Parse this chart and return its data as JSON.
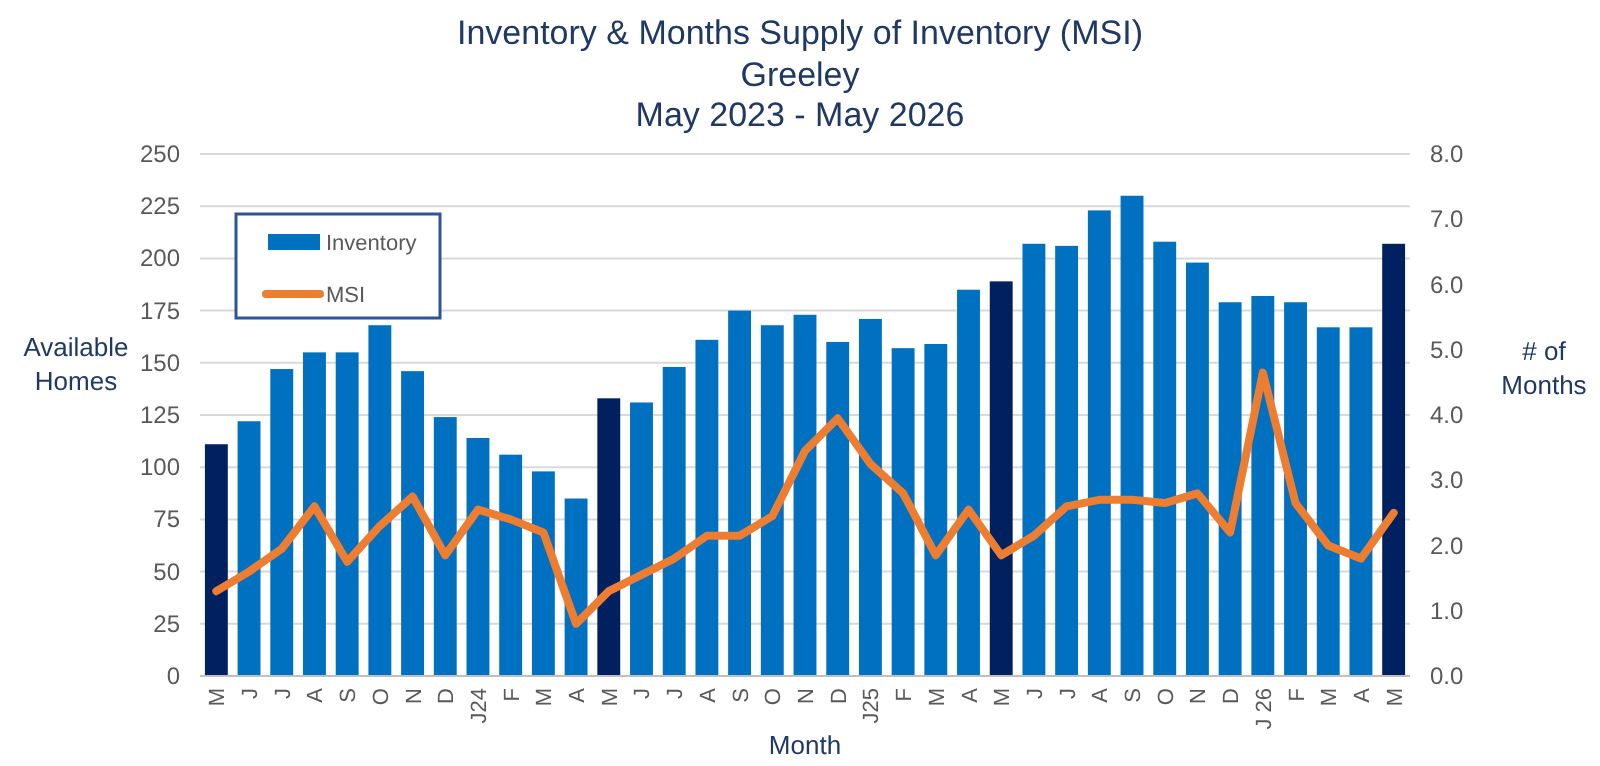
{
  "chart_data": {
    "type": "bar",
    "title": "Inventory & Months Supply of Inventory (MSI)",
    "subtitle": "Greeley\nMay 2023 - May 2026",
    "xlabel": "Month",
    "ylabel": "Available\nHomes",
    "y2label": "# of\nMonths",
    "categories": [
      "M",
      "J",
      "J",
      "A",
      "S",
      "O",
      "N",
      "D",
      "J24",
      "F",
      "M",
      "A",
      "M",
      "J",
      "J",
      "A",
      "S",
      "O",
      "N",
      "D",
      "J25",
      "F",
      "M",
      "A",
      "M",
      "J",
      "J",
      "A",
      "S",
      "O",
      "N",
      "D",
      "J 26",
      "F",
      "M",
      "A",
      "M"
    ],
    "series": [
      {
        "name": "Inventory",
        "color": "#0070c0",
        "colors": [
          "#002060",
          "#0070c0",
          "#0070c0",
          "#0070c0",
          "#0070c0",
          "#0070c0",
          "#0070c0",
          "#0070c0",
          "#0070c0",
          "#0070c0",
          "#0070c0",
          "#0070c0",
          "#002060",
          "#0070c0",
          "#0070c0",
          "#0070c0",
          "#0070c0",
          "#0070c0",
          "#0070c0",
          "#0070c0",
          "#0070c0",
          "#0070c0",
          "#0070c0",
          "#0070c0",
          "#002060",
          "#0070c0",
          "#0070c0",
          "#0070c0",
          "#0070c0",
          "#0070c0",
          "#0070c0",
          "#0070c0",
          "#0070c0",
          "#0070c0",
          "#0070c0",
          "#0070c0",
          "#002060"
        ],
        "values": [
          111,
          122,
          147,
          155,
          155,
          168,
          146,
          124,
          114,
          106,
          98,
          85,
          133,
          131,
          148,
          161,
          175,
          168,
          173,
          160,
          171,
          157,
          159,
          185,
          189,
          207,
          206,
          223,
          230,
          208,
          198,
          179,
          182,
          179,
          167,
          167,
          207
        ]
      },
      {
        "name": "MSI",
        "type": "line",
        "axis": "y2",
        "color": "#ed7d31",
        "values": [
          1.3,
          1.6,
          1.95,
          2.6,
          1.75,
          2.3,
          2.75,
          1.85,
          2.55,
          2.4,
          2.2,
          0.8,
          1.3,
          1.55,
          1.8,
          2.15,
          2.15,
          2.45,
          3.45,
          3.95,
          3.25,
          2.8,
          1.85,
          2.55,
          1.85,
          2.15,
          2.6,
          2.7,
          2.7,
          2.65,
          2.8,
          2.2,
          4.65,
          2.65,
          2.0,
          1.8,
          2.5
        ]
      }
    ],
    "ylim": [
      0,
      250
    ],
    "yticks": [
      0,
      25,
      50,
      75,
      100,
      125,
      150,
      175,
      200,
      225,
      250
    ],
    "y2lim": [
      0,
      8
    ],
    "y2ticks": [
      {
        "value": 0,
        "label": "0.0"
      },
      {
        "value": 1,
        "label": "1.0"
      },
      {
        "value": 2,
        "label": "2.0"
      },
      {
        "value": 3,
        "label": "3.0"
      },
      {
        "value": 4,
        "label": "4.0"
      },
      {
        "value": 5,
        "label": "5.0"
      },
      {
        "value": 6,
        "label": "6.0"
      },
      {
        "value": 7,
        "label": "7.0"
      },
      {
        "value": 8,
        "label": "8.0"
      }
    ],
    "grid": "y",
    "legend": "top left",
    "line_style": "solid",
    "marker": "none"
  }
}
